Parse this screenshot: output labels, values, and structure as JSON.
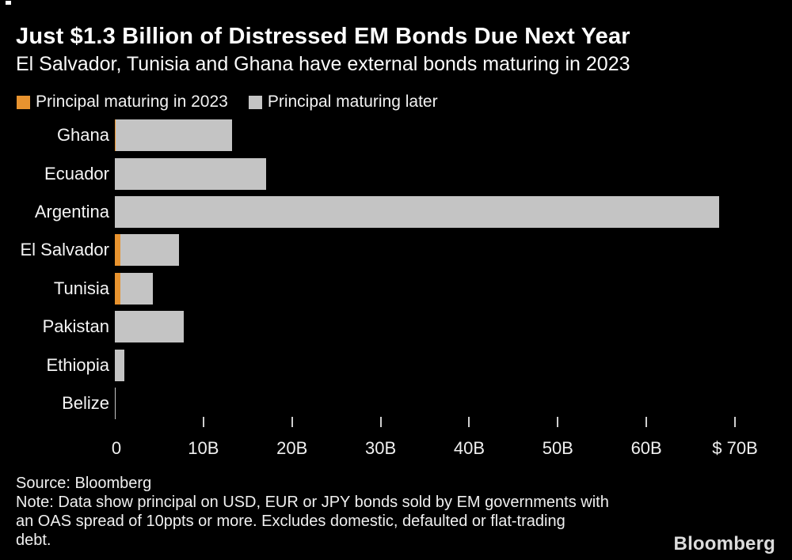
{
  "header": {
    "title": "Just $1.3 Billion of Distressed EM Bonds Due Next Year",
    "subtitle": "El Salvador, Tunisia and Ghana have external bonds maturing in 2023"
  },
  "legend": {
    "items": [
      {
        "label": "Principal maturing in 2023",
        "color": "#E8932F"
      },
      {
        "label": "Principal maturing later",
        "color": "#C4C4C4"
      }
    ]
  },
  "chart_data": {
    "type": "bar",
    "orientation": "horizontal",
    "stacked": true,
    "title": "Just $1.3 Billion of Distressed EM Bonds Due Next Year",
    "subtitle": "El Salvador, Tunisia and Ghana have external bonds maturing in 2023",
    "unit": "USD billions",
    "categories": [
      "Ghana",
      "Ecuador",
      "Argentina",
      "El Salvador",
      "Tunisia",
      "Pakistan",
      "Ethiopia",
      "Belize"
    ],
    "series": [
      {
        "name": "Principal maturing in 2023",
        "color": "#E8932F",
        "values": [
          0.1,
          0,
          0,
          0.6,
          0.6,
          0,
          0,
          0
        ]
      },
      {
        "name": "Principal maturing later",
        "color": "#C4C4C4",
        "values": [
          13.1,
          17.1,
          68.2,
          6.6,
          3.7,
          7.8,
          1.1,
          0.05
        ]
      }
    ],
    "totals": [
      13.2,
      17.1,
      68.2,
      7.2,
      4.3,
      7.8,
      1.1,
      0.05
    ],
    "x_axis": {
      "min": 0,
      "max": 70,
      "tick_values": [
        0,
        10,
        20,
        30,
        40,
        50,
        60,
        70
      ],
      "tick_labels": [
        "0",
        "10B",
        "20B",
        "30B",
        "40B",
        "50B",
        "60B",
        "$ 70B"
      ]
    },
    "legend_position": "top",
    "grid": false
  },
  "footer": {
    "source": "Source: Bloomberg",
    "note_lines": [
      "Note: Data show principal on USD, EUR or JPY bonds sold by EM governments with",
      "an OAS spread of 10ppts or more. Excludes domestic, defaulted or flat-trading",
      "debt."
    ],
    "logo": "Bloomberg"
  },
  "colors": {
    "background": "#000000",
    "text": "#F5F5F5",
    "orange": "#E8932F",
    "gray": "#C4C4C4",
    "tick": "#CFCFCF"
  }
}
